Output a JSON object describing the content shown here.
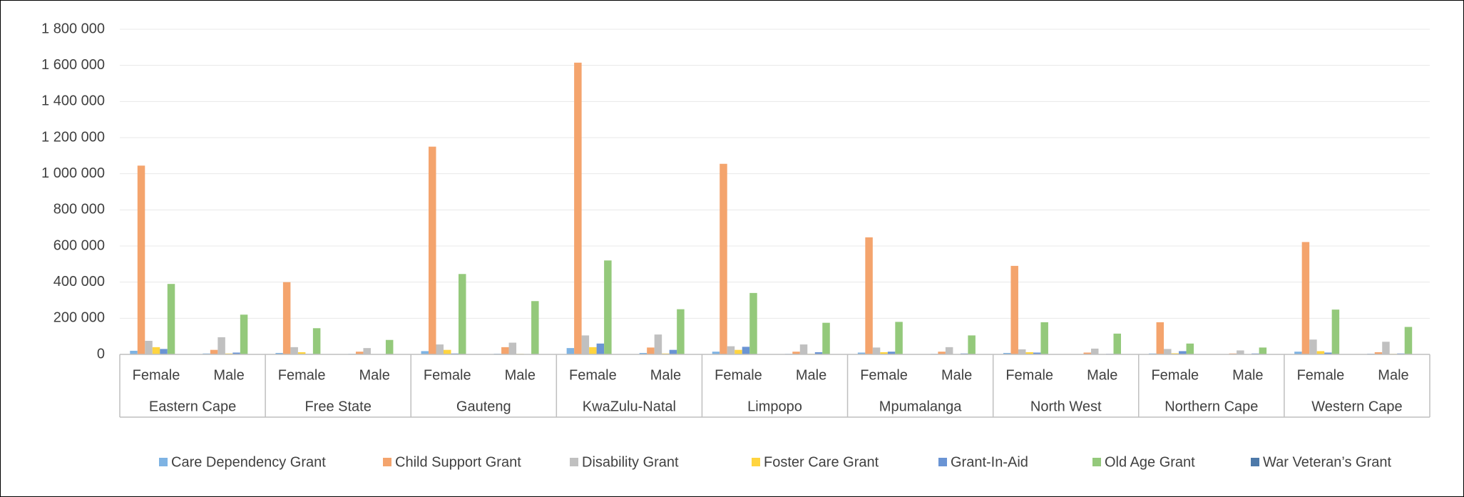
{
  "chart_data": {
    "type": "bar",
    "categories": [
      "Female",
      "Male",
      "Female",
      "Male",
      "Female",
      "Male",
      "Female",
      "Male",
      "Female",
      "Male",
      "Female",
      "Male",
      "Female",
      "Male",
      "Female",
      "Male",
      "Female",
      "Male"
    ],
    "groups": [
      "Eastern Cape",
      "Free State",
      "Gauteng",
      "KwaZulu-Natal",
      "Limpopo",
      "Mpumalanga",
      "North West",
      "Northern Cape",
      "Western Cape"
    ],
    "series": [
      {
        "name": "Care Dependency Grant",
        "color": "#7eb3e3",
        "values": [
          20000,
          5000,
          8000,
          3000,
          18000,
          4000,
          35000,
          8000,
          15000,
          3000,
          10000,
          3000,
          8000,
          2000,
          5000,
          1000,
          15000,
          4000
        ]
      },
      {
        "name": "Child Support Grant",
        "color": "#f4a46d",
        "values": [
          1045000,
          25000,
          400000,
          15000,
          1150000,
          40000,
          1615000,
          38000,
          1055000,
          15000,
          648000,
          15000,
          490000,
          10000,
          178000,
          5000,
          622000,
          12000
        ]
      },
      {
        "name": "Disability Grant",
        "color": "#c0c0c0",
        "values": [
          75000,
          95000,
          40000,
          35000,
          55000,
          65000,
          105000,
          110000,
          45000,
          55000,
          38000,
          40000,
          28000,
          32000,
          30000,
          22000,
          82000,
          70000
        ]
      },
      {
        "name": "Foster Care Grant",
        "color": "#ffd43f",
        "values": [
          40000,
          5000,
          12000,
          2000,
          25000,
          3000,
          40000,
          5000,
          25000,
          3000,
          12000,
          2000,
          12000,
          2000,
          6000,
          1000,
          18000,
          3000
        ]
      },
      {
        "name": "Grant-In-Aid",
        "color": "#6a94d4",
        "values": [
          30000,
          10000,
          3000,
          1000,
          5000,
          2000,
          60000,
          25000,
          42000,
          12000,
          15000,
          5000,
          10000,
          3000,
          18000,
          5000,
          10000,
          5000
        ]
      },
      {
        "name": "Old Age Grant",
        "color": "#94c97b",
        "values": [
          390000,
          220000,
          145000,
          80000,
          445000,
          295000,
          520000,
          250000,
          340000,
          175000,
          180000,
          105000,
          178000,
          115000,
          60000,
          38000,
          248000,
          152000
        ]
      },
      {
        "name": "War Veteran’s Grant",
        "color": "#4d79a9",
        "values": [
          200,
          100,
          50,
          30,
          100,
          100,
          100,
          50,
          50,
          30,
          30,
          20,
          30,
          20,
          20,
          10,
          50,
          30
        ]
      }
    ],
    "ylim": [
      0,
      1800000
    ],
    "yticks": [
      0,
      {
        "value": 200000,
        "label": "200 000"
      },
      {
        "value": 400000,
        "label": "400 000"
      },
      {
        "value": 600000,
        "label": "600 000"
      },
      {
        "value": 800000,
        "label": "800 000"
      },
      {
        "value": 1000000,
        "label": "1 000 000"
      },
      {
        "value": 1200000,
        "label": "1 200 000"
      },
      {
        "value": 1400000,
        "label": "1 400 000"
      },
      {
        "value": 1600000,
        "label": "1 600 000"
      },
      {
        "value": 1800000,
        "label": "1 800 000"
      }
    ],
    "grid": true,
    "legend": "bottom"
  }
}
